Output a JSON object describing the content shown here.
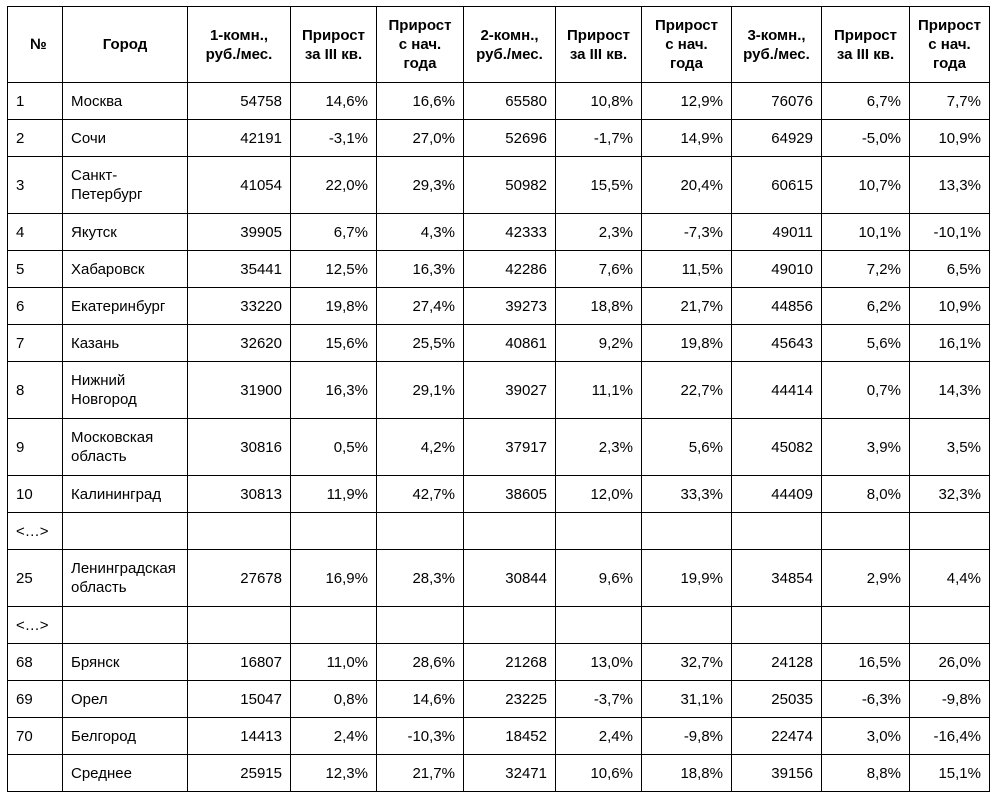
{
  "columns": [
    "№",
    "Город",
    "1-комн., руб./мес.",
    "Прирост за III кв.",
    "Прирост с нач. года",
    "2-комн., руб./мес.",
    "Прирост за III кв.",
    "Прирост с нач. года",
    "3-комн., руб./мес.",
    "Прирост за III кв.",
    "Прирост с нач. года"
  ],
  "rows": [
    {
      "num": "1",
      "city": "Москва",
      "v": [
        "54758",
        "14,6%",
        "16,6%",
        "65580",
        "10,8%",
        "12,9%",
        "76076",
        "6,7%",
        "7,7%"
      ],
      "tall": false
    },
    {
      "num": "2",
      "city": "Сочи",
      "v": [
        "42191",
        "-3,1%",
        "27,0%",
        "52696",
        "-1,7%",
        "14,9%",
        "64929",
        "-5,0%",
        "10,9%"
      ],
      "tall": false
    },
    {
      "num": "3",
      "city": "Санкт-Петербург",
      "v": [
        "41054",
        "22,0%",
        "29,3%",
        "50982",
        "15,5%",
        "20,4%",
        "60615",
        "10,7%",
        "13,3%"
      ],
      "tall": true
    },
    {
      "num": "4",
      "city": "Якутск",
      "v": [
        "39905",
        "6,7%",
        "4,3%",
        "42333",
        "2,3%",
        "-7,3%",
        "49011",
        "10,1%",
        "-10,1%"
      ],
      "tall": false
    },
    {
      "num": "5",
      "city": "Хабаровск",
      "v": [
        "35441",
        "12,5%",
        "16,3%",
        "42286",
        "7,6%",
        "11,5%",
        "49010",
        "7,2%",
        "6,5%"
      ],
      "tall": false
    },
    {
      "num": "6",
      "city": "Екатеринбург",
      "v": [
        "33220",
        "19,8%",
        "27,4%",
        "39273",
        "18,8%",
        "21,7%",
        "44856",
        "6,2%",
        "10,9%"
      ],
      "tall": false
    },
    {
      "num": "7",
      "city": "Казань",
      "v": [
        "32620",
        "15,6%",
        "25,5%",
        "40861",
        "9,2%",
        "19,8%",
        "45643",
        "5,6%",
        "16,1%"
      ],
      "tall": false
    },
    {
      "num": "8",
      "city": "Нижний Новгород",
      "v": [
        "31900",
        "16,3%",
        "29,1%",
        "39027",
        "11,1%",
        "22,7%",
        "44414",
        "0,7%",
        "14,3%"
      ],
      "tall": true
    },
    {
      "num": "9",
      "city": "Московская область",
      "v": [
        "30816",
        "0,5%",
        "4,2%",
        "37917",
        "2,3%",
        "5,6%",
        "45082",
        "3,9%",
        "3,5%"
      ],
      "tall": true
    },
    {
      "num": "10",
      "city": "Калининград",
      "v": [
        "30813",
        "11,9%",
        "42,7%",
        "38605",
        "12,0%",
        "33,3%",
        "44409",
        "8,0%",
        "32,3%"
      ],
      "tall": false
    },
    {
      "num": "<…>",
      "city": "",
      "v": [
        "",
        "",
        "",
        "",
        "",
        "",
        "",
        "",
        ""
      ],
      "tall": false
    },
    {
      "num": "25",
      "city": "Ленинградская область",
      "v": [
        "27678",
        "16,9%",
        "28,3%",
        "30844",
        "9,6%",
        "19,9%",
        "34854",
        "2,9%",
        "4,4%"
      ],
      "tall": true
    },
    {
      "num": "<…>",
      "city": "",
      "v": [
        "",
        "",
        "",
        "",
        "",
        "",
        "",
        "",
        ""
      ],
      "tall": false
    },
    {
      "num": "68",
      "city": "Брянск",
      "v": [
        "16807",
        "11,0%",
        "28,6%",
        "21268",
        "13,0%",
        "32,7%",
        "24128",
        "16,5%",
        "26,0%"
      ],
      "tall": false
    },
    {
      "num": "69",
      "city": "Орел",
      "v": [
        "15047",
        "0,8%",
        "14,6%",
        "23225",
        "-3,7%",
        "31,1%",
        "25035",
        "-6,3%",
        "-9,8%"
      ],
      "tall": false
    },
    {
      "num": "70",
      "city": "Белгород",
      "v": [
        "14413",
        "2,4%",
        "-10,3%",
        "18452",
        "2,4%",
        "-9,8%",
        "22474",
        "3,0%",
        "-16,4%"
      ],
      "tall": false
    },
    {
      "num": "",
      "city": "Среднее",
      "v": [
        "25915",
        "12,3%",
        "21,7%",
        "32471",
        "10,6%",
        "18,8%",
        "39156",
        "8,8%",
        "15,1%"
      ],
      "tall": false
    }
  ]
}
